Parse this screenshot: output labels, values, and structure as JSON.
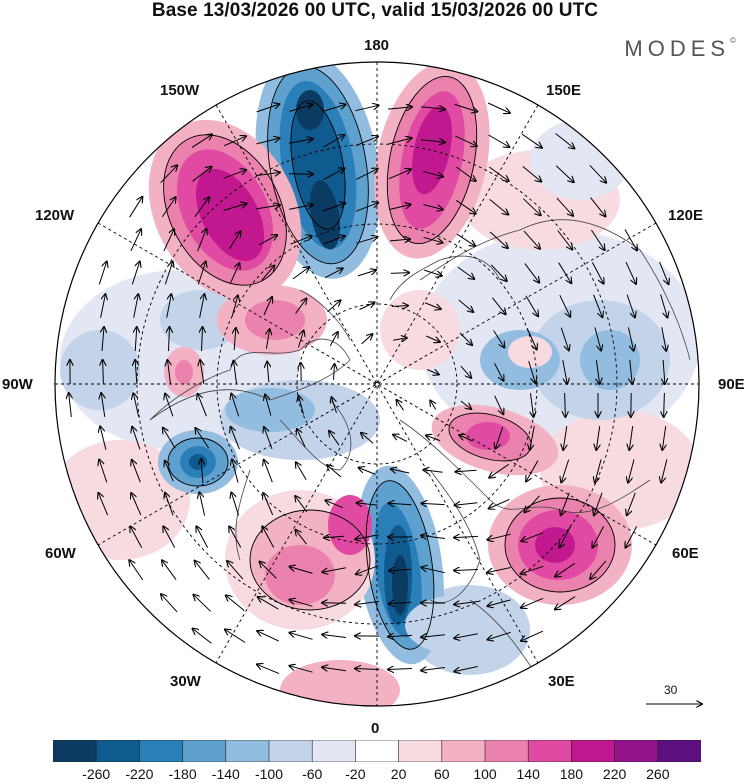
{
  "title": "Base 13/03/2026 00 UTC, valid 15/03/2026 00 UTC",
  "brand": "MODES",
  "brand_mark": "©",
  "longitude_labels": {
    "north": "180",
    "south": "0",
    "east": "90E",
    "west": "90W",
    "ne1": "150E",
    "ne2": "120E",
    "nw1": "150W",
    "nw2": "120W",
    "se1": "60E",
    "se2": "30E",
    "sw1": "60W",
    "sw2": "30W"
  },
  "wind_scale": {
    "value": "30"
  },
  "colorbar": {
    "colors": [
      "#0b3b63",
      "#0f5a8e",
      "#2a7fb8",
      "#5ea1cf",
      "#93bde0",
      "#c3d3ea",
      "#e3e6f3",
      "#ffffff",
      "#f7dbe0",
      "#f2b2c3",
      "#ea82ad",
      "#e04aa2",
      "#c2188f",
      "#93138c",
      "#5c0f7d"
    ],
    "labels": [
      "-260",
      "-220",
      "-180",
      "-140",
      "-100",
      "-60",
      "-20",
      "20",
      "60",
      "100",
      "140",
      "180",
      "220",
      "260"
    ]
  },
  "anomaly_centers": [
    {
      "label": "trough-180",
      "value": -240
    },
    {
      "label": "ridge-150W",
      "value": 200
    },
    {
      "label": "ridge-160E",
      "value": 190
    },
    {
      "label": "ridge-60E",
      "value": 200
    },
    {
      "label": "trough-10E",
      "value": -250
    },
    {
      "label": "ridge-85E",
      "value": 170
    },
    {
      "label": "trough-70W",
      "value": -190
    },
    {
      "label": "ridge-20W",
      "value": 150
    }
  ]
}
